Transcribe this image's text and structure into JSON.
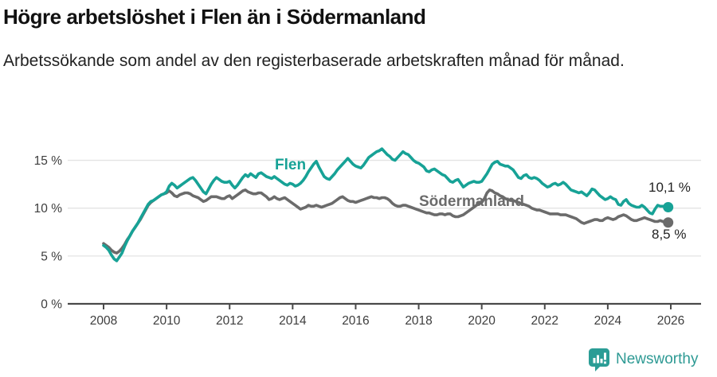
{
  "header": {
    "title": "Högre arbetslöshet i Flen än i Södermanland",
    "subtitle": "Arbetssökande som andel av den registerbaserade arbetskraften månad för månad."
  },
  "footer": {
    "brand": "Newsworthy"
  },
  "colors": {
    "flen": "#17a296",
    "sodermanland": "#6b6b6b",
    "gridline": "#e3e3e3",
    "axis": "#4a4a4a",
    "tick_text": "#3d3d3d"
  },
  "chart_data": {
    "type": "line",
    "title": "Högre arbetslöshet i Flen än i Södermanland",
    "subtitle": "Arbetssökande som andel av den registerbaserade arbetskraften månad för månad.",
    "x_unit": "months from 2008-01 to 2025-12",
    "ylim": [
      0,
      17.5
    ],
    "xlim": [
      2008,
      2026.5
    ],
    "grid": "horizontal",
    "legend_position": "inline-labels",
    "y_axis": {
      "ticks": [
        {
          "value": 0,
          "label": "0 %"
        },
        {
          "value": 5,
          "label": "5 %"
        },
        {
          "value": 10,
          "label": "10 %"
        },
        {
          "value": 15,
          "label": "15 %"
        }
      ]
    },
    "x_axis": {
      "ticks": [
        {
          "value": 2008,
          "label": "2008"
        },
        {
          "value": 2010,
          "label": "2010"
        },
        {
          "value": 2012,
          "label": "2012"
        },
        {
          "value": 2014,
          "label": "2014"
        },
        {
          "value": 2016,
          "label": "2016"
        },
        {
          "value": 2018,
          "label": "2018"
        },
        {
          "value": 2020,
          "label": "2020"
        },
        {
          "value": 2022,
          "label": "2022"
        },
        {
          "value": 2024,
          "label": "2024"
        },
        {
          "value": 2026,
          "label": "2026"
        }
      ]
    },
    "series": [
      {
        "name": "Södermanland",
        "color": "#6b6b6b",
        "end_label": "8,5 %",
        "end_value": 8.5,
        "values": [
          6.3,
          6.1,
          5.9,
          5.6,
          5.4,
          5.3,
          5.5,
          5.8,
          6.2,
          6.7,
          7.1,
          7.6,
          8.0,
          8.4,
          8.8,
          9.3,
          9.8,
          10.3,
          10.6,
          10.8,
          11.0,
          11.2,
          11.4,
          11.5,
          11.6,
          11.8,
          11.6,
          11.3,
          11.2,
          11.4,
          11.5,
          11.6,
          11.6,
          11.5,
          11.3,
          11.2,
          11.1,
          10.9,
          10.7,
          10.8,
          11.0,
          11.2,
          11.2,
          11.2,
          11.1,
          11.0,
          11.0,
          11.2,
          11.3,
          11.0,
          11.2,
          11.4,
          11.6,
          11.8,
          11.9,
          11.7,
          11.6,
          11.5,
          11.5,
          11.6,
          11.6,
          11.4,
          11.2,
          10.9,
          11.0,
          11.2,
          11.0,
          10.9,
          11.0,
          11.1,
          10.9,
          10.7,
          10.5,
          10.3,
          10.1,
          9.9,
          10.0,
          10.1,
          10.3,
          10.2,
          10.2,
          10.3,
          10.2,
          10.1,
          10.2,
          10.3,
          10.4,
          10.5,
          10.7,
          10.9,
          11.1,
          11.2,
          11.0,
          10.8,
          10.7,
          10.7,
          10.6,
          10.7,
          10.8,
          10.9,
          11.0,
          11.1,
          11.2,
          11.1,
          11.1,
          11.0,
          11.1,
          11.1,
          11.0,
          10.8,
          10.5,
          10.3,
          10.2,
          10.2,
          10.3,
          10.3,
          10.2,
          10.1,
          10.0,
          9.9,
          9.8,
          9.7,
          9.6,
          9.5,
          9.5,
          9.4,
          9.3,
          9.3,
          9.4,
          9.4,
          9.3,
          9.4,
          9.4,
          9.2,
          9.1,
          9.1,
          9.2,
          9.3,
          9.5,
          9.7,
          9.9,
          10.1,
          10.3,
          10.5,
          10.6,
          11.0,
          11.6,
          11.9,
          11.8,
          11.6,
          11.5,
          11.3,
          11.2,
          11.0,
          10.9,
          10.8,
          10.8,
          10.7,
          10.6,
          10.5,
          10.4,
          10.3,
          10.2,
          10.0,
          9.9,
          9.8,
          9.8,
          9.7,
          9.6,
          9.5,
          9.4,
          9.4,
          9.4,
          9.4,
          9.3,
          9.3,
          9.3,
          9.2,
          9.1,
          9.0,
          8.9,
          8.7,
          8.5,
          8.4,
          8.5,
          8.6,
          8.7,
          8.8,
          8.8,
          8.7,
          8.7,
          8.9,
          9.0,
          8.9,
          8.8,
          8.9,
          9.1,
          9.2,
          9.3,
          9.2,
          9.0,
          8.8,
          8.7,
          8.7,
          8.8,
          8.9,
          9.0,
          8.9,
          8.8,
          8.7,
          8.6,
          8.6,
          8.7,
          8.6,
          8.5,
          8.5
        ]
      },
      {
        "name": "Flen",
        "color": "#17a296",
        "end_label": "10,1 %",
        "end_value": 10.1,
        "values": [
          6.1,
          5.9,
          5.6,
          5.1,
          4.7,
          4.5,
          4.9,
          5.3,
          6.0,
          6.6,
          7.1,
          7.6,
          8.0,
          8.4,
          8.9,
          9.4,
          9.9,
          10.4,
          10.7,
          10.8,
          11.0,
          11.2,
          11.4,
          11.5,
          11.7,
          12.3,
          12.6,
          12.4,
          12.1,
          12.3,
          12.5,
          12.7,
          12.9,
          13.1,
          13.2,
          12.9,
          12.5,
          12.1,
          11.7,
          11.5,
          12.0,
          12.5,
          12.9,
          13.2,
          13.0,
          12.8,
          12.7,
          12.7,
          12.8,
          12.4,
          12.1,
          12.4,
          12.8,
          13.2,
          13.5,
          13.3,
          13.6,
          13.4,
          13.2,
          13.6,
          13.7,
          13.5,
          13.3,
          13.2,
          13.1,
          13.3,
          13.1,
          12.9,
          12.7,
          12.5,
          12.4,
          12.6,
          12.5,
          12.3,
          12.4,
          12.6,
          12.9,
          13.3,
          13.8,
          14.2,
          14.6,
          14.9,
          14.3,
          13.8,
          13.3,
          13.1,
          13.0,
          13.3,
          13.6,
          14.0,
          14.3,
          14.6,
          14.9,
          15.2,
          14.9,
          14.6,
          14.4,
          14.3,
          14.2,
          14.5,
          14.9,
          15.3,
          15.5,
          15.7,
          15.9,
          16.0,
          16.2,
          15.9,
          15.6,
          15.4,
          15.1,
          15.0,
          15.3,
          15.6,
          15.9,
          15.7,
          15.6,
          15.3,
          15.0,
          14.8,
          14.7,
          14.5,
          14.3,
          13.9,
          13.8,
          14.0,
          14.1,
          13.9,
          13.7,
          13.5,
          13.4,
          13.1,
          12.8,
          12.7,
          12.9,
          13.0,
          12.6,
          12.2,
          12.4,
          12.6,
          12.7,
          12.8,
          12.7,
          12.7,
          12.8,
          13.2,
          13.6,
          14.1,
          14.6,
          14.8,
          14.9,
          14.6,
          14.5,
          14.4,
          14.4,
          14.2,
          14.0,
          13.6,
          13.2,
          13.1,
          13.4,
          13.5,
          13.2,
          13.1,
          13.2,
          13.1,
          12.9,
          12.6,
          12.4,
          12.2,
          12.3,
          12.5,
          12.6,
          12.4,
          12.5,
          12.7,
          12.5,
          12.2,
          11.9,
          11.8,
          11.7,
          11.6,
          11.7,
          11.5,
          11.3,
          11.6,
          12.0,
          11.9,
          11.6,
          11.3,
          11.1,
          10.9,
          11.0,
          11.2,
          11.0,
          10.9,
          10.4,
          10.3,
          10.7,
          10.9,
          10.5,
          10.3,
          10.2,
          10.1,
          10.1,
          10.3,
          10.1,
          9.8,
          9.5,
          9.4,
          9.9,
          10.3,
          10.2,
          10.2,
          10.1,
          10.1
        ]
      }
    ]
  }
}
